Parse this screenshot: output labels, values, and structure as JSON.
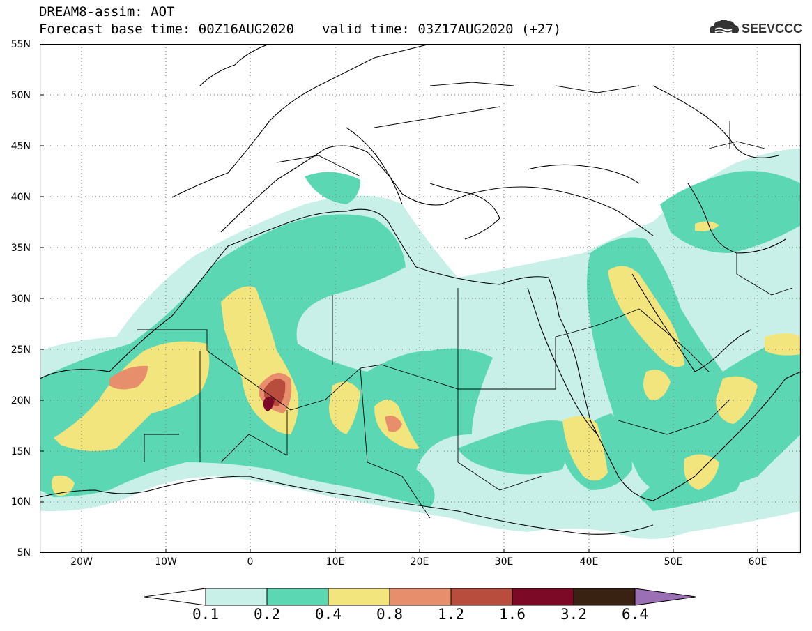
{
  "header": {
    "title_line1": "DREAM8-assim: AOT",
    "base_time": "Forecast base time: 00Z16AUG2020",
    "valid_time": "valid time: 03Z17AUG2020 (+27)",
    "logo_text": "SEEVCCC"
  },
  "map": {
    "projection": "lat-lon",
    "lon_range": [
      -25,
      65
    ],
    "lat_range": [
      5,
      55
    ],
    "lat_labels": [
      "55N",
      "50N",
      "45N",
      "40N",
      "35N",
      "30N",
      "25N",
      "20N",
      "15N",
      "10N",
      "5N"
    ],
    "lon_labels": [
      "20W",
      "10W",
      "0",
      "10E",
      "20E",
      "30E",
      "40E",
      "50E",
      "60E"
    ],
    "grid": "dotted"
  },
  "legend": {
    "levels": [
      "0.1",
      "0.2",
      "0.4",
      "0.8",
      "1.2",
      "1.6",
      "3.2",
      "6.4"
    ],
    "colors": [
      "#c8f0e9",
      "#5cd7b4",
      "#f3e57e",
      "#e78f6c",
      "#b84d3e",
      "#7c0a26",
      "#3a2212",
      "#9b6fb4"
    ]
  }
}
